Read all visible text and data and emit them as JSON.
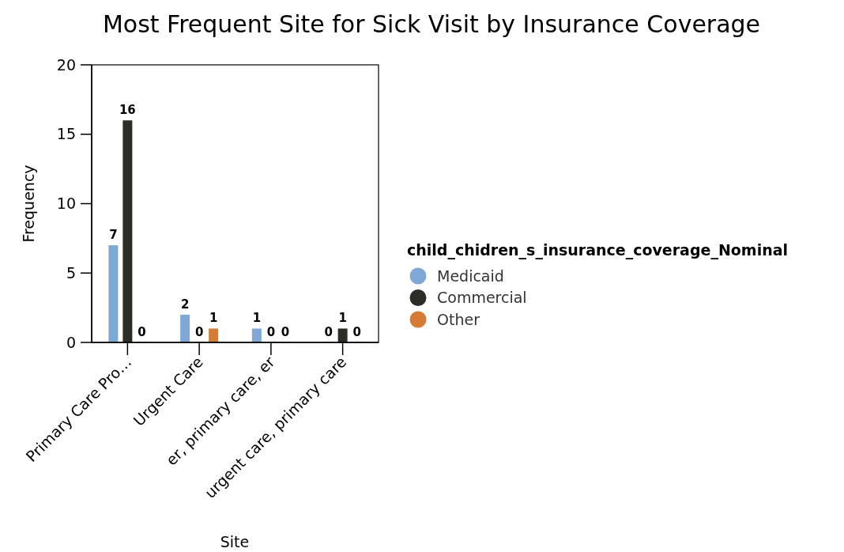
{
  "chart_data": {
    "type": "bar",
    "title": "Most Frequent Site for Sick Visit by Insurance Coverage",
    "xlabel": "Site",
    "ylabel": "Frequency",
    "legend_title": "child_chidren_s_insurance_coverage_Nominal",
    "categories": [
      "Primary Care Pro…",
      "Urgent Care",
      "er, primary care, er",
      "urgent care, primary care"
    ],
    "series": [
      {
        "name": "Medicaid",
        "color": "#7ea8d6",
        "values": [
          7,
          2,
          1,
          0
        ]
      },
      {
        "name": "Commercial",
        "color": "#2d2d28",
        "values": [
          16,
          0,
          0,
          1
        ]
      },
      {
        "name": "Other",
        "color": "#d67a35",
        "values": [
          0,
          1,
          0,
          0
        ]
      }
    ],
    "ylim": [
      0,
      20
    ],
    "yticks": [
      0,
      5,
      10,
      15,
      20
    ],
    "data_labels": true,
    "legend": "right",
    "grid": false
  }
}
